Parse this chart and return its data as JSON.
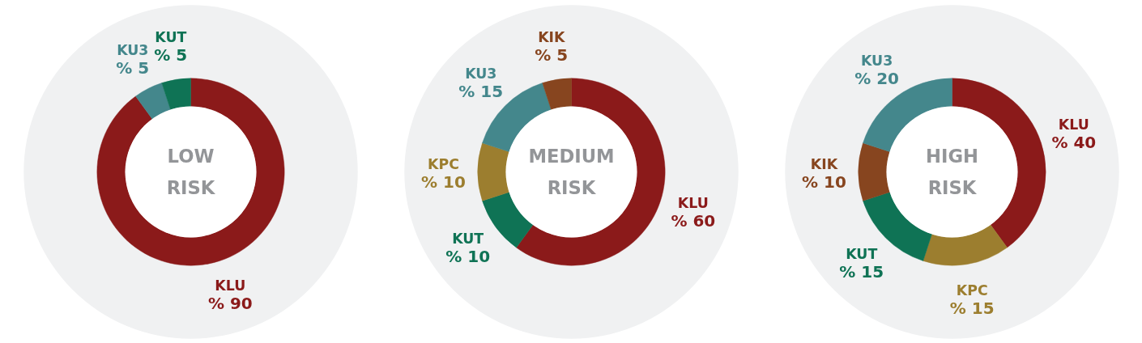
{
  "chart_data": [
    {
      "type": "donut",
      "title": "LOW RISK",
      "categories": [
        "KLU",
        "KU3",
        "KUT"
      ],
      "values": [
        90,
        5,
        5
      ],
      "colors": [
        "#8b1a1a",
        "#44878c",
        "#0f7355"
      ],
      "value_labels": [
        "% 90",
        "% 5",
        "% 5"
      ],
      "legend": false
    },
    {
      "type": "donut",
      "title": "MEDIUM RISK",
      "categories": [
        "KLU",
        "KUT",
        "KPC",
        "KU3",
        "KIK"
      ],
      "values": [
        60,
        10,
        10,
        15,
        5
      ],
      "colors": [
        "#8b1a1a",
        "#0f7355",
        "#9c7e2f",
        "#44878c",
        "#87451f"
      ],
      "value_labels": [
        "% 60",
        "% 10",
        "% 10",
        "% 15",
        "% 5"
      ],
      "legend": false
    },
    {
      "type": "donut",
      "title": "HIGH RISK",
      "categories": [
        "KLU",
        "KPC",
        "KUT",
        "KIK",
        "KU3"
      ],
      "values": [
        40,
        15,
        15,
        10,
        20
      ],
      "colors": [
        "#8b1a1a",
        "#9c7e2f",
        "#0f7355",
        "#87451f",
        "#44878c"
      ],
      "value_labels": [
        "% 40",
        "% 15",
        "% 15",
        "% 10",
        "% 20"
      ],
      "legend": false
    }
  ]
}
